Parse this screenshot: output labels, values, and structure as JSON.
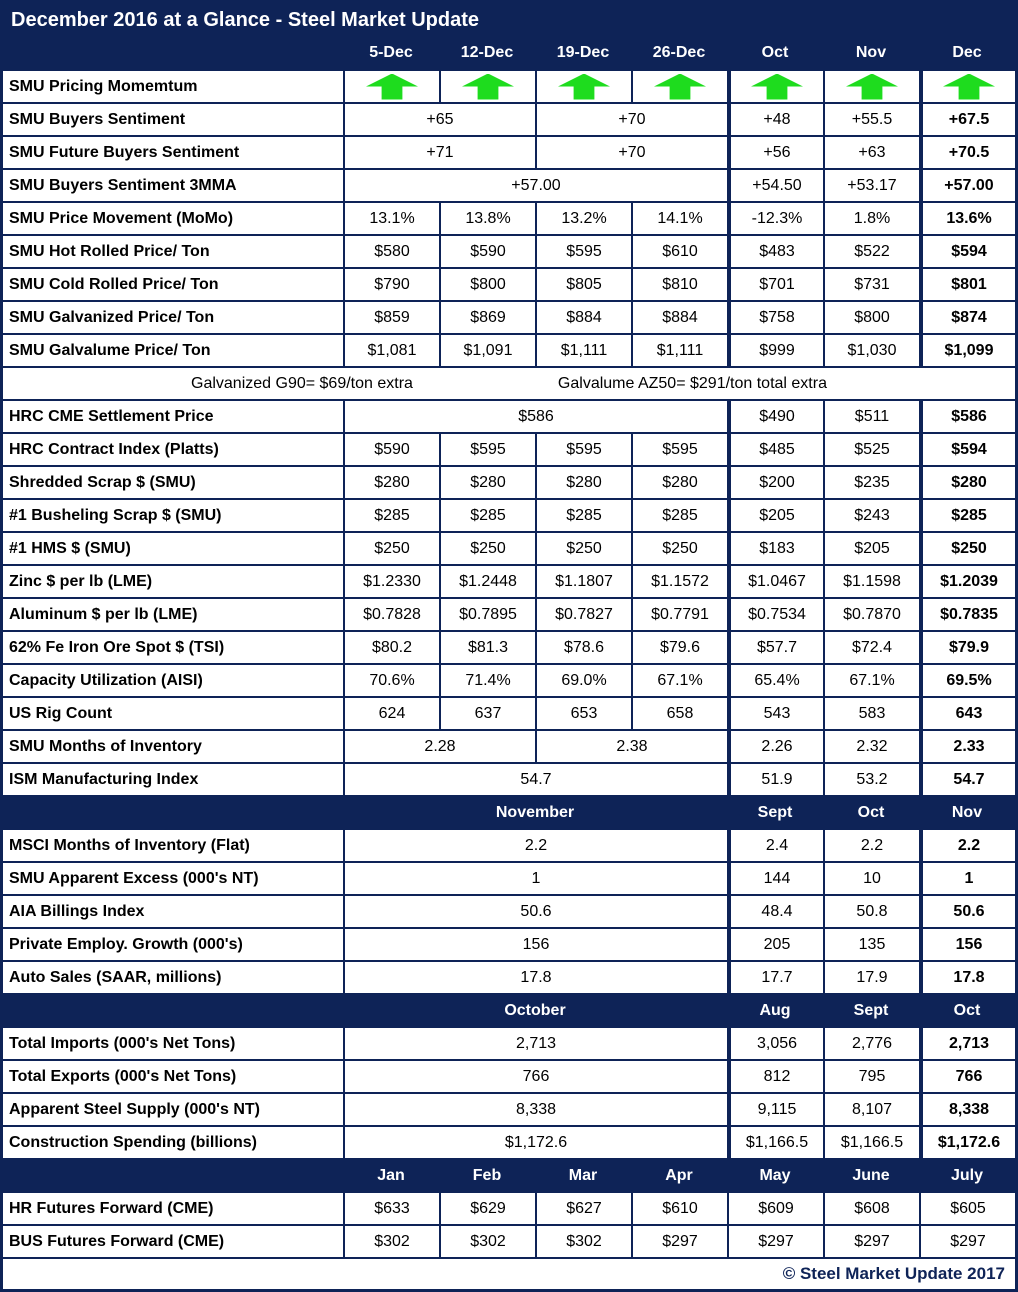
{
  "colors": {
    "navy": "#0e2357",
    "green": "#1edc1e",
    "text": "#000000",
    "background": "#ffffff"
  },
  "icons": {
    "momentum_arrow": "up-arrow-icon"
  },
  "chart_data": {
    "type": "table",
    "title": "December 2016 at a Glance - Steel Market Update",
    "footer": "© Steel Market Update 2017",
    "columns": [
      "5-Dec",
      "12-Dec",
      "19-Dec",
      "26-Dec",
      "Oct",
      "Nov",
      "Dec"
    ],
    "rows": [
      {
        "kind": "arrows",
        "label": "SMU Pricing Momemtum",
        "count": 7,
        "direction": "up"
      },
      {
        "kind": "data",
        "label": "SMU Buyers Sentiment",
        "cells": [
          {
            "t": "+65",
            "s": 2
          },
          {
            "t": "+70",
            "s": 2
          },
          {
            "t": "+48"
          },
          {
            "t": "+55.5"
          },
          {
            "t": "+67.5",
            "b": 1
          }
        ]
      },
      {
        "kind": "data",
        "label": "SMU Future Buyers Sentiment",
        "cells": [
          {
            "t": "+71",
            "s": 2
          },
          {
            "t": "+70",
            "s": 2
          },
          {
            "t": "+56"
          },
          {
            "t": "+63"
          },
          {
            "t": "+70.5",
            "b": 1
          }
        ]
      },
      {
        "kind": "data",
        "label": "SMU Buyers Sentiment 3MMA",
        "cells": [
          {
            "t": "+57.00",
            "s": 4
          },
          {
            "t": "+54.50"
          },
          {
            "t": "+53.17"
          },
          {
            "t": "+57.00",
            "b": 1
          }
        ]
      },
      {
        "kind": "data",
        "label": "SMU Price Movement (MoMo)",
        "cells": [
          {
            "t": "13.1%"
          },
          {
            "t": "13.8%"
          },
          {
            "t": "13.2%"
          },
          {
            "t": "14.1%"
          },
          {
            "t": "-12.3%"
          },
          {
            "t": "1.8%"
          },
          {
            "t": "13.6%",
            "b": 1
          }
        ]
      },
      {
        "kind": "data",
        "label": "SMU Hot Rolled Price/ Ton",
        "cells": [
          {
            "t": "$580"
          },
          {
            "t": "$590"
          },
          {
            "t": "$595"
          },
          {
            "t": "$610"
          },
          {
            "t": "$483"
          },
          {
            "t": "$522"
          },
          {
            "t": "$594",
            "b": 1
          }
        ]
      },
      {
        "kind": "data",
        "label": "SMU Cold Rolled Price/ Ton",
        "cells": [
          {
            "t": "$790"
          },
          {
            "t": "$800"
          },
          {
            "t": "$805"
          },
          {
            "t": "$810"
          },
          {
            "t": "$701"
          },
          {
            "t": "$731"
          },
          {
            "t": "$801",
            "b": 1
          }
        ]
      },
      {
        "kind": "data",
        "label": "SMU Galvanized Price/ Ton",
        "cells": [
          {
            "t": "$859"
          },
          {
            "t": "$869"
          },
          {
            "t": "$884"
          },
          {
            "t": "$884"
          },
          {
            "t": "$758"
          },
          {
            "t": "$800"
          },
          {
            "t": "$874",
            "b": 1
          }
        ]
      },
      {
        "kind": "data",
        "label": "SMU Galvalume Price/ Ton",
        "cells": [
          {
            "t": "$1,081"
          },
          {
            "t": "$1,091"
          },
          {
            "t": "$1,111"
          },
          {
            "t": "$1,111"
          },
          {
            "t": "$999"
          },
          {
            "t": "$1,030"
          },
          {
            "t": "$1,099",
            "b": 1
          }
        ]
      },
      {
        "kind": "note",
        "parts": [
          "Galvanized G90= $69/ton extra",
          "Galvalume AZ50= $291/ton total extra"
        ]
      },
      {
        "kind": "data",
        "label": "HRC CME Settlement Price",
        "cells": [
          {
            "t": "$586",
            "s": 4
          },
          {
            "t": "$490"
          },
          {
            "t": "$511"
          },
          {
            "t": "$586",
            "b": 1
          }
        ]
      },
      {
        "kind": "data",
        "label": "HRC Contract Index (Platts)",
        "cells": [
          {
            "t": "$590"
          },
          {
            "t": "$595"
          },
          {
            "t": "$595"
          },
          {
            "t": "$595"
          },
          {
            "t": "$485"
          },
          {
            "t": "$525"
          },
          {
            "t": "$594",
            "b": 1
          }
        ]
      },
      {
        "kind": "data",
        "label": "Shredded Scrap $ (SMU)",
        "cells": [
          {
            "t": "$280"
          },
          {
            "t": "$280"
          },
          {
            "t": "$280"
          },
          {
            "t": "$280"
          },
          {
            "t": "$200"
          },
          {
            "t": "$235"
          },
          {
            "t": "$280",
            "b": 1
          }
        ]
      },
      {
        "kind": "data",
        "label": "#1 Busheling Scrap $ (SMU)",
        "cells": [
          {
            "t": "$285"
          },
          {
            "t": "$285"
          },
          {
            "t": "$285"
          },
          {
            "t": "$285"
          },
          {
            "t": "$205"
          },
          {
            "t": "$243"
          },
          {
            "t": "$285",
            "b": 1
          }
        ]
      },
      {
        "kind": "data",
        "label": "#1 HMS $ (SMU)",
        "cells": [
          {
            "t": "$250"
          },
          {
            "t": "$250"
          },
          {
            "t": "$250"
          },
          {
            "t": "$250"
          },
          {
            "t": "$183"
          },
          {
            "t": "$205"
          },
          {
            "t": "$250",
            "b": 1
          }
        ]
      },
      {
        "kind": "data",
        "label": "Zinc $ per lb (LME)",
        "cells": [
          {
            "t": "$1.2330"
          },
          {
            "t": "$1.2448"
          },
          {
            "t": "$1.1807"
          },
          {
            "t": "$1.1572"
          },
          {
            "t": "$1.0467"
          },
          {
            "t": "$1.1598"
          },
          {
            "t": "$1.2039",
            "b": 1
          }
        ]
      },
      {
        "kind": "data",
        "label": "Aluminum $ per lb (LME)",
        "cells": [
          {
            "t": "$0.7828"
          },
          {
            "t": "$0.7895"
          },
          {
            "t": "$0.7827"
          },
          {
            "t": "$0.7791"
          },
          {
            "t": "$0.7534"
          },
          {
            "t": "$0.7870"
          },
          {
            "t": "$0.7835",
            "b": 1
          }
        ]
      },
      {
        "kind": "data",
        "label": "62% Fe Iron Ore Spot $ (TSI)",
        "cells": [
          {
            "t": "$80.2"
          },
          {
            "t": "$81.3"
          },
          {
            "t": "$78.6"
          },
          {
            "t": "$79.6"
          },
          {
            "t": "$57.7"
          },
          {
            "t": "$72.4"
          },
          {
            "t": "$79.9",
            "b": 1
          }
        ]
      },
      {
        "kind": "data",
        "label": "Capacity Utilization (AISI)",
        "cells": [
          {
            "t": "70.6%"
          },
          {
            "t": "71.4%"
          },
          {
            "t": "69.0%"
          },
          {
            "t": "67.1%"
          },
          {
            "t": "65.4%"
          },
          {
            "t": "67.1%"
          },
          {
            "t": "69.5%",
            "b": 1
          }
        ]
      },
      {
        "kind": "data",
        "label": "US Rig Count",
        "cells": [
          {
            "t": "624"
          },
          {
            "t": "637"
          },
          {
            "t": "653"
          },
          {
            "t": "658"
          },
          {
            "t": "543"
          },
          {
            "t": "583"
          },
          {
            "t": "643",
            "b": 1
          }
        ]
      },
      {
        "kind": "data",
        "label": "SMU Months of Inventory",
        "cells": [
          {
            "t": "2.28",
            "s": 2
          },
          {
            "t": "2.38",
            "s": 2
          },
          {
            "t": "2.26"
          },
          {
            "t": "2.32"
          },
          {
            "t": "2.33",
            "b": 1
          }
        ]
      },
      {
        "kind": "data",
        "label": "ISM Manufacturing Index",
        "cells": [
          {
            "t": "54.7",
            "s": 4
          },
          {
            "t": "51.9"
          },
          {
            "t": "53.2"
          },
          {
            "t": "54.7",
            "b": 1
          }
        ]
      },
      {
        "kind": "section",
        "cells": [
          {
            "t": "November",
            "s": 4
          },
          {
            "t": "Sept"
          },
          {
            "t": "Oct"
          },
          {
            "t": "Nov"
          }
        ]
      },
      {
        "kind": "data",
        "label": "MSCI Months of Inventory (Flat)",
        "cells": [
          {
            "t": "2.2",
            "s": 4
          },
          {
            "t": "2.4"
          },
          {
            "t": "2.2"
          },
          {
            "t": "2.2",
            "b": 1
          }
        ]
      },
      {
        "kind": "data",
        "label": "SMU Apparent Excess (000's NT)",
        "cells": [
          {
            "t": "1",
            "s": 4
          },
          {
            "t": "144"
          },
          {
            "t": "10"
          },
          {
            "t": "1",
            "b": 1
          }
        ]
      },
      {
        "kind": "data",
        "label": "AIA Billings Index",
        "cells": [
          {
            "t": "50.6",
            "s": 4
          },
          {
            "t": "48.4"
          },
          {
            "t": "50.8"
          },
          {
            "t": "50.6",
            "b": 1
          }
        ]
      },
      {
        "kind": "data",
        "label": "Private Employ. Growth (000's)",
        "cells": [
          {
            "t": "156",
            "s": 4
          },
          {
            "t": "205"
          },
          {
            "t": "135"
          },
          {
            "t": "156",
            "b": 1
          }
        ]
      },
      {
        "kind": "data",
        "label": "Auto Sales (SAAR, millions)",
        "cells": [
          {
            "t": "17.8",
            "s": 4
          },
          {
            "t": "17.7"
          },
          {
            "t": "17.9"
          },
          {
            "t": "17.8",
            "b": 1
          }
        ]
      },
      {
        "kind": "section",
        "cells": [
          {
            "t": "October",
            "s": 4
          },
          {
            "t": "Aug"
          },
          {
            "t": "Sept"
          },
          {
            "t": "Oct"
          }
        ]
      },
      {
        "kind": "data",
        "label": "Total Imports (000's Net Tons)",
        "cells": [
          {
            "t": "2,713",
            "s": 4
          },
          {
            "t": "3,056"
          },
          {
            "t": "2,776"
          },
          {
            "t": "2,713",
            "b": 1
          }
        ]
      },
      {
        "kind": "data",
        "label": "Total Exports (000's Net Tons)",
        "cells": [
          {
            "t": "766",
            "s": 4
          },
          {
            "t": "812"
          },
          {
            "t": "795"
          },
          {
            "t": "766",
            "b": 1
          }
        ]
      },
      {
        "kind": "data",
        "label": "Apparent Steel Supply (000's NT)",
        "cells": [
          {
            "t": "8,338",
            "s": 4
          },
          {
            "t": "9,115"
          },
          {
            "t": "8,107"
          },
          {
            "t": "8,338",
            "b": 1
          }
        ]
      },
      {
        "kind": "data",
        "label": "Construction Spending (billions)",
        "cells": [
          {
            "t": "$1,172.6",
            "s": 4
          },
          {
            "t": "$1,166.5"
          },
          {
            "t": "$1,166.5"
          },
          {
            "t": "$1,172.6",
            "b": 1
          }
        ]
      },
      {
        "kind": "section",
        "cells": [
          {
            "t": "Jan"
          },
          {
            "t": "Feb"
          },
          {
            "t": "Mar"
          },
          {
            "t": "Apr"
          },
          {
            "t": "May"
          },
          {
            "t": "June"
          },
          {
            "t": "July"
          }
        ]
      },
      {
        "kind": "data",
        "nothick": 1,
        "label": "HR Futures Forward (CME)",
        "cells": [
          {
            "t": "$633"
          },
          {
            "t": "$629"
          },
          {
            "t": "$627"
          },
          {
            "t": "$610"
          },
          {
            "t": "$609"
          },
          {
            "t": "$608"
          },
          {
            "t": "$605"
          }
        ]
      },
      {
        "kind": "data",
        "nothick": 1,
        "label": "BUS Futures Forward (CME)",
        "cells": [
          {
            "t": "$302"
          },
          {
            "t": "$302"
          },
          {
            "t": "$302"
          },
          {
            "t": "$297"
          },
          {
            "t": "$297"
          },
          {
            "t": "$297"
          },
          {
            "t": "$297"
          }
        ]
      }
    ]
  }
}
